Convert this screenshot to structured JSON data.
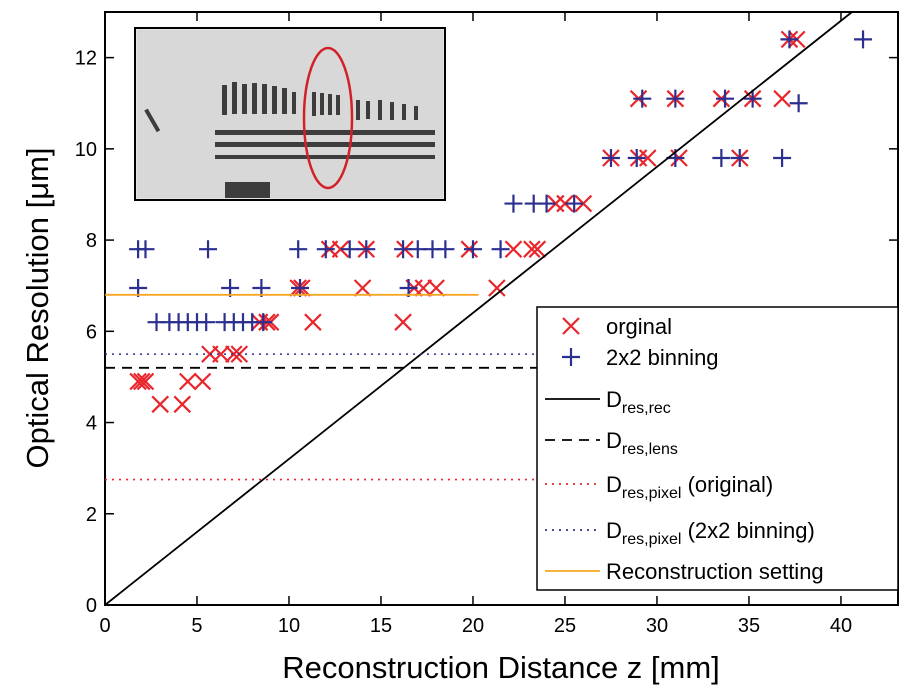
{
  "chart_data": {
    "type": "scatter",
    "xlabel": "Reconstruction Distance z [mm]",
    "ylabel": "Optical Resolution [μm]",
    "xlim": [
      0,
      43.1
    ],
    "ylim": [
      0,
      13
    ],
    "xticks": [
      0,
      5,
      10,
      15,
      20,
      25,
      30,
      35,
      40
    ],
    "yticks": [
      0,
      2,
      4,
      6,
      8,
      10,
      12
    ],
    "legend": "lower right",
    "series": [
      {
        "name": "orginal",
        "type": "scatter",
        "marker": "x",
        "color": "#e8262c",
        "x": [
          1.8,
          2.0,
          2.2,
          3.0,
          4.2,
          4.5,
          5.3,
          5.7,
          6.3,
          7.0,
          7.3,
          8.4,
          8.8,
          9.0,
          10.5,
          10.7,
          11.3,
          12.2,
          12.8,
          14.0,
          14.2,
          16.2,
          16.3,
          16.8,
          17.3,
          18.0,
          19.8,
          21.3,
          22.2,
          23.2,
          23.5,
          24.5,
          25.0,
          26.0,
          27.5,
          29.0,
          29.5,
          31.2,
          29.0,
          31.0,
          33.5,
          34.5,
          35.2,
          36.8,
          37.2,
          37.6
        ],
        "values": [
          4.9,
          4.9,
          4.9,
          4.4,
          4.4,
          4.9,
          4.9,
          5.5,
          5.5,
          5.5,
          5.5,
          6.2,
          6.2,
          6.2,
          6.95,
          6.95,
          6.2,
          7.8,
          7.8,
          6.95,
          7.8,
          6.2,
          7.8,
          6.95,
          6.95,
          6.95,
          7.8,
          6.95,
          7.8,
          7.8,
          7.8,
          8.8,
          8.8,
          8.8,
          9.8,
          9.8,
          9.8,
          9.8,
          11.1,
          11.1,
          11.1,
          9.8,
          11.1,
          11.1,
          12.4,
          12.4
        ]
      },
      {
        "name": "2x2 binning",
        "type": "scatter",
        "marker": "+",
        "color": "#2b2f8f",
        "x": [
          1.8,
          2.2,
          1.8,
          2.8,
          3.5,
          4.0,
          4.5,
          5.0,
          5.5,
          5.6,
          6.5,
          6.8,
          7.0,
          7.5,
          8.0,
          8.5,
          8.6,
          10.5,
          10.6,
          12.0,
          13.3,
          14.2,
          16.2,
          16.5,
          17.0,
          17.8,
          18.5,
          20.0,
          21.5,
          22.2,
          23.3,
          24.0,
          25.5,
          27.5,
          28.9,
          31.0,
          33.5,
          34.5,
          36.8,
          29.2,
          31.0,
          33.7,
          35.2,
          37.7,
          37.2,
          41.2
        ],
        "values": [
          7.8,
          7.8,
          6.95,
          6.2,
          6.2,
          6.2,
          6.2,
          6.2,
          6.2,
          7.8,
          6.2,
          6.95,
          6.2,
          6.2,
          6.2,
          6.95,
          6.2,
          7.8,
          6.95,
          7.8,
          7.8,
          7.8,
          7.8,
          6.95,
          7.8,
          7.8,
          7.8,
          7.8,
          7.8,
          8.8,
          8.8,
          8.8,
          8.8,
          9.8,
          9.8,
          9.8,
          9.8,
          9.8,
          9.8,
          11.1,
          11.1,
          11.1,
          11.1,
          11.0,
          12.4,
          12.4
        ]
      },
      {
        "name": "D",
        "subscript": "res,rec",
        "type": "line",
        "dash": "solid",
        "color": "#000000",
        "x": [
          0,
          40.6
        ],
        "values": [
          0,
          13
        ]
      },
      {
        "name": "D",
        "subscript": "res,lens",
        "type": "line",
        "dash": "dashed",
        "color": "#000000",
        "x": [
          0,
          43.1
        ],
        "values": [
          5.2,
          5.2
        ]
      },
      {
        "name": "D",
        "subscript": "res,pixel",
        "suffix": " (original)",
        "type": "line",
        "dash": "dotted",
        "color": "#e8262c",
        "x": [
          0,
          43.1
        ],
        "values": [
          2.75,
          2.75
        ]
      },
      {
        "name": "D",
        "subscript": "res,pixel",
        "suffix": " (2x2 binning)",
        "type": "line",
        "dash": "dotted",
        "color": "#2b2f8f",
        "x": [
          0,
          43.1
        ],
        "values": [
          5.5,
          5.5
        ]
      },
      {
        "name": "Reconstruction setting",
        "type": "line",
        "dash": "solid",
        "color": "#f5a623",
        "x": [
          0,
          20.3
        ],
        "values": [
          6.8,
          6.8
        ]
      }
    ]
  }
}
